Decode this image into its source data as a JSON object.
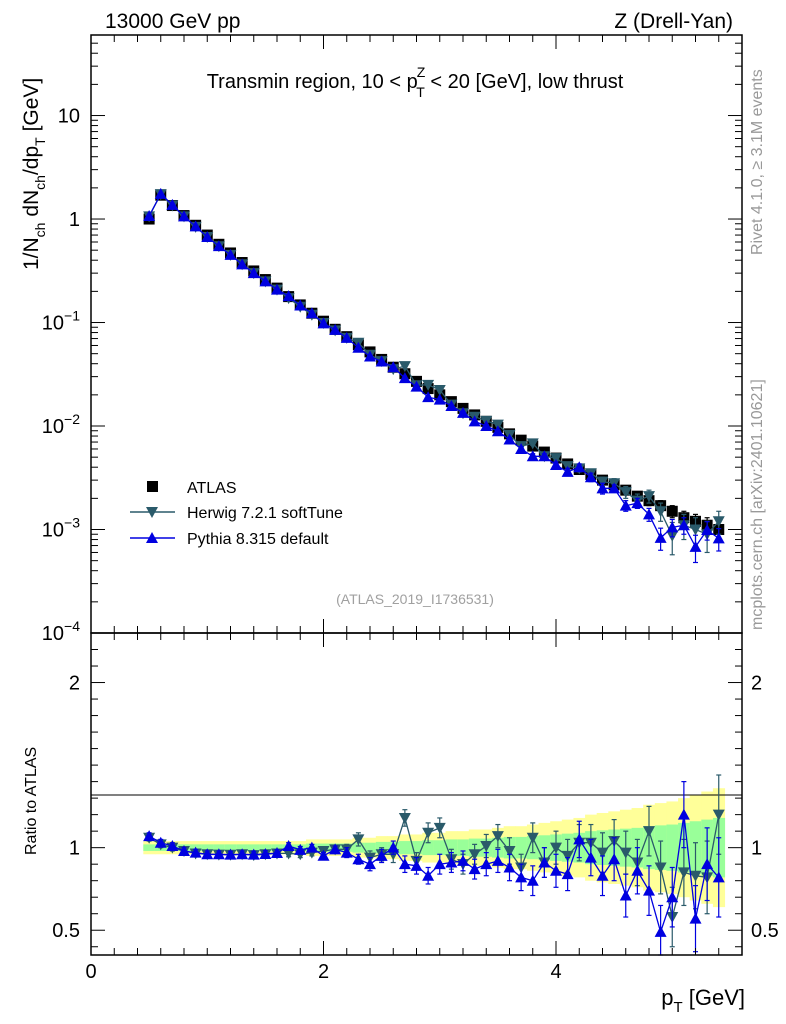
{
  "header": {
    "left_title": "13000 GeV pp",
    "right_title": "Z (Drell-Yan)"
  },
  "watermark": {
    "rivet": "Rivet 4.1.0, ≥ 3.1M events",
    "mcplots": "mcplots.cern.ch [arXiv:2401.10621]"
  },
  "colors": {
    "atlas": "#000000",
    "herwig": "#2a5a6a",
    "pythia": "#0000e0",
    "band_outer": "#ffff99",
    "band_inner": "#99ff99"
  },
  "chart_data": [
    {
      "type": "scatter",
      "panel": "main",
      "title": "Transmin region, 10 < pTZ < 20 [GeV], low thrust",
      "title_parts": {
        "pre": "Transmin region, 10 < p",
        "sup": "Z",
        "sub": "T",
        "post": " < 20 [GeV], low thrust"
      },
      "ylabel": "1/Nch dNch/dpT [GeV]",
      "ylabel_parts": {
        "a": "1/N",
        "a_sub": "ch",
        "b": " dN",
        "b_sub": "ch",
        "c": "/dp",
        "c_sub": "T",
        "d": " [GeV]"
      },
      "yscale": "log",
      "ylim": [
        0.0001,
        60
      ],
      "xlim": [
        0,
        5.6
      ],
      "y_ticks": [
        {
          "value": 10,
          "label": "10",
          "sup": ""
        },
        {
          "value": 1,
          "label": "1",
          "sup": ""
        },
        {
          "value": 0.1,
          "label": "10",
          "sup": "−1"
        },
        {
          "value": 0.01,
          "label": "10",
          "sup": "−2"
        },
        {
          "value": 0.001,
          "label": "10",
          "sup": "−3"
        },
        {
          "value": 0.0001,
          "label": "10",
          "sup": "−4"
        }
      ],
      "legend": {
        "position": "bottom-left",
        "entries": [
          "ATLAS",
          "Herwig 7.2.1 softTune",
          "Pythia 8.315 default"
        ]
      },
      "analysis_label": "(ATLAS_2019_I1736531)",
      "x": [
        0.5,
        0.6,
        0.7,
        0.8,
        0.9,
        1.0,
        1.1,
        1.2,
        1.3,
        1.4,
        1.5,
        1.6,
        1.7,
        1.8,
        1.9,
        2.0,
        2.1,
        2.2,
        2.3,
        2.4,
        2.5,
        2.6,
        2.7,
        2.8,
        2.9,
        3.0,
        3.1,
        3.2,
        3.3,
        3.4,
        3.5,
        3.6,
        3.7,
        3.8,
        3.9,
        4.0,
        4.1,
        4.2,
        4.3,
        4.4,
        4.5,
        4.6,
        4.7,
        4.8,
        4.9,
        5.0,
        5.1,
        5.2,
        5.3,
        5.4
      ],
      "series": [
        {
          "name": "ATLAS",
          "values": [
            1.0,
            1.7,
            1.35,
            1.08,
            0.87,
            0.7,
            0.57,
            0.47,
            0.38,
            0.315,
            0.26,
            0.215,
            0.178,
            0.148,
            0.123,
            0.103,
            0.086,
            0.073,
            0.061,
            0.052,
            0.044,
            0.037,
            0.032,
            0.027,
            0.023,
            0.02,
            0.0172,
            0.0148,
            0.0128,
            0.0111,
            0.0097,
            0.0084,
            0.0073,
            0.0064,
            0.0056,
            0.0049,
            0.0043,
            0.0038,
            0.0034,
            0.003,
            0.0027,
            0.0024,
            0.0021,
            0.0019,
            0.0017,
            0.0015,
            0.0013,
            0.0012,
            0.0011,
            0.001
          ],
          "errors": [
            0.05,
            0.08,
            0.06,
            0.04,
            0.03,
            0.025,
            0.02,
            0.015,
            0.012,
            0.01,
            0.008,
            0.006,
            0.005,
            0.004,
            0.003,
            0.003,
            0.002,
            0.002,
            0.0015,
            0.0013,
            0.0011,
            0.001,
            0.0009,
            0.0008,
            0.0007,
            0.0006,
            0.0005,
            0.0005,
            0.0004,
            0.0004,
            0.0003,
            0.0003,
            0.0003,
            0.0003,
            0.0002,
            0.0002,
            0.0002,
            0.0002,
            0.0002,
            0.0002,
            0.0002,
            0.0002,
            0.0002,
            0.0002,
            0.0002,
            0.0002,
            0.0002,
            0.0002,
            0.0002,
            0.0002
          ]
        },
        {
          "name": "Herwig 7.2.1 softTune",
          "values": [
            1.06,
            1.74,
            1.35,
            1.06,
            0.84,
            0.67,
            0.546,
            0.45,
            0.366,
            0.3,
            0.25,
            0.208,
            0.172,
            0.142,
            0.119,
            0.099,
            0.084,
            0.071,
            0.0637,
            0.0488,
            0.0424,
            0.0355,
            0.0379,
            0.0248,
            0.025,
            0.0223,
            0.0161,
            0.0133,
            0.0123,
            0.0112,
            0.0103,
            0.0082,
            0.0064,
            0.0068,
            0.0051,
            0.0049,
            0.0041,
            0.0039,
            0.0035,
            0.0029,
            0.0028,
            0.0023,
            0.0019,
            0.0021,
            0.0015,
            0.00087,
            0.0011,
            0.001,
            0.0009,
            0.0012
          ],
          "errors": [
            0.02,
            0.03,
            0.02,
            0.015,
            0.01,
            0.008,
            0.006,
            0.005,
            0.004,
            0.003,
            0.003,
            0.002,
            0.002,
            0.0016,
            0.0013,
            0.0011,
            0.0009,
            0.0008,
            0.0007,
            0.0006,
            0.0005,
            0.0005,
            0.0005,
            0.0004,
            0.0004,
            0.0004,
            0.0003,
            0.0003,
            0.0003,
            0.0003,
            0.0003,
            0.0003,
            0.0003,
            0.0003,
            0.0003,
            0.0003,
            0.0003,
            0.0003,
            0.0003,
            0.0003,
            0.0003,
            0.0003,
            0.0003,
            0.0003,
            0.0003,
            0.0003,
            0.0003,
            0.0003,
            0.0003,
            0.0003
          ]
        },
        {
          "name": "Pythia 8.315 default",
          "values": [
            1.07,
            1.75,
            1.37,
            1.06,
            0.85,
            0.67,
            0.547,
            0.45,
            0.365,
            0.3,
            0.25,
            0.208,
            0.18,
            0.146,
            0.123,
            0.098,
            0.085,
            0.071,
            0.057,
            0.047,
            0.042,
            0.037,
            0.029,
            0.024,
            0.019,
            0.018,
            0.0156,
            0.0134,
            0.0111,
            0.01,
            0.0089,
            0.0074,
            0.006,
            0.0051,
            0.0051,
            0.0042,
            0.0036,
            0.004,
            0.0032,
            0.0025,
            0.0025,
            0.0017,
            0.0018,
            0.0014,
            0.00083,
            0.00105,
            0.0011,
            0.00068,
            0.00099,
            0.00082
          ],
          "errors": [
            0.02,
            0.03,
            0.02,
            0.015,
            0.01,
            0.008,
            0.006,
            0.005,
            0.004,
            0.003,
            0.003,
            0.002,
            0.002,
            0.0016,
            0.0013,
            0.0011,
            0.0009,
            0.0008,
            0.0007,
            0.0006,
            0.0005,
            0.0005,
            0.0004,
            0.0004,
            0.0004,
            0.0003,
            0.0003,
            0.0003,
            0.0003,
            0.0003,
            0.0003,
            0.0003,
            0.0003,
            0.0003,
            0.0003,
            0.0003,
            0.0003,
            0.0003,
            0.0003,
            0.0003,
            0.0002,
            0.0002,
            0.0002,
            0.0002,
            0.0002,
            0.0002,
            0.0002,
            0.0002,
            0.0002,
            0.0002
          ]
        }
      ]
    },
    {
      "type": "scatter",
      "panel": "ratio",
      "ylabel": "Ratio to ATLAS",
      "xlabel": "pT [GeV]",
      "xlabel_parts": {
        "a": "p",
        "a_sub": "T",
        "b": " [GeV]"
      },
      "ylim": [
        0.35,
        2.3
      ],
      "xlim": [
        0,
        5.6
      ],
      "x_ticks": [
        0,
        2,
        4
      ],
      "y_ticks": [
        0.5,
        1,
        2
      ],
      "x": [
        0.5,
        0.6,
        0.7,
        0.8,
        0.9,
        1.0,
        1.1,
        1.2,
        1.3,
        1.4,
        1.5,
        1.6,
        1.7,
        1.8,
        1.9,
        2.0,
        2.1,
        2.2,
        2.3,
        2.4,
        2.5,
        2.6,
        2.7,
        2.8,
        2.9,
        3.0,
        3.1,
        3.2,
        3.3,
        3.4,
        3.5,
        3.6,
        3.7,
        3.8,
        3.9,
        4.0,
        4.1,
        4.2,
        4.3,
        4.4,
        4.5,
        4.6,
        4.7,
        4.8,
        4.9,
        5.0,
        5.1,
        5.2,
        5.3,
        5.4
      ],
      "band_outer": [
        0.04,
        0.04,
        0.04,
        0.04,
        0.04,
        0.04,
        0.04,
        0.04,
        0.04,
        0.04,
        0.04,
        0.04,
        0.04,
        0.04,
        0.05,
        0.05,
        0.05,
        0.05,
        0.06,
        0.06,
        0.07,
        0.07,
        0.08,
        0.08,
        0.09,
        0.09,
        0.1,
        0.1,
        0.11,
        0.11,
        0.12,
        0.13,
        0.13,
        0.14,
        0.15,
        0.16,
        0.17,
        0.18,
        0.2,
        0.21,
        0.22,
        0.23,
        0.24,
        0.26,
        0.27,
        0.28,
        0.3,
        0.32,
        0.34,
        0.36
      ],
      "band_inner": [
        0.02,
        0.02,
        0.02,
        0.02,
        0.02,
        0.02,
        0.02,
        0.02,
        0.02,
        0.02,
        0.02,
        0.02,
        0.02,
        0.02,
        0.025,
        0.025,
        0.025,
        0.025,
        0.03,
        0.03,
        0.035,
        0.035,
        0.04,
        0.04,
        0.045,
        0.045,
        0.05,
        0.05,
        0.055,
        0.055,
        0.06,
        0.065,
        0.065,
        0.07,
        0.075,
        0.08,
        0.085,
        0.09,
        0.1,
        0.105,
        0.11,
        0.115,
        0.12,
        0.13,
        0.135,
        0.14,
        0.15,
        0.16,
        0.17,
        0.18
      ],
      "series": [
        {
          "name": "Herwig 7.2.1 softTune",
          "values": [
            1.06,
            1.02,
            1.0,
            0.98,
            0.965,
            0.96,
            0.958,
            0.957,
            0.96,
            0.955,
            0.96,
            0.965,
            0.965,
            0.96,
            0.97,
            0.98,
            0.99,
            0.99,
            1.05,
            0.94,
            0.96,
            0.96,
            1.18,
            0.92,
            1.09,
            1.12,
            0.93,
            0.9,
            0.96,
            1.01,
            1.07,
            0.98,
            0.88,
            1.06,
            0.91,
            1.0,
            0.95,
            1.03,
            1.03,
            0.97,
            1.04,
            0.97,
            0.91,
            1.1,
            0.88,
            0.58,
            0.85,
            0.83,
            0.82,
            1.2
          ],
          "errors": [
            0.02,
            0.02,
            0.02,
            0.02,
            0.02,
            0.02,
            0.02,
            0.02,
            0.02,
            0.02,
            0.02,
            0.02,
            0.02,
            0.02,
            0.02,
            0.02,
            0.02,
            0.03,
            0.04,
            0.04,
            0.04,
            0.05,
            0.05,
            0.05,
            0.06,
            0.06,
            0.06,
            0.06,
            0.06,
            0.07,
            0.07,
            0.08,
            0.08,
            0.09,
            0.09,
            0.1,
            0.1,
            0.11,
            0.11,
            0.12,
            0.13,
            0.13,
            0.14,
            0.15,
            0.16,
            0.18,
            0.2,
            0.2,
            0.22,
            0.24
          ]
        },
        {
          "name": "Pythia 8.315 default",
          "values": [
            1.07,
            1.03,
            1.01,
            0.98,
            0.97,
            0.96,
            0.96,
            0.958,
            0.96,
            0.958,
            0.962,
            0.968,
            1.01,
            0.987,
            1.0,
            0.951,
            0.99,
            0.97,
            0.93,
            0.9,
            0.95,
            1.0,
            0.9,
            0.89,
            0.83,
            0.9,
            0.91,
            0.92,
            0.87,
            0.9,
            0.92,
            0.88,
            0.82,
            0.8,
            0.91,
            0.86,
            0.84,
            1.05,
            0.94,
            0.83,
            0.93,
            0.71,
            0.86,
            0.74,
            0.49,
            0.7,
            1.2,
            0.57,
            0.9,
            0.82
          ],
          "errors": [
            0.02,
            0.02,
            0.02,
            0.02,
            0.02,
            0.02,
            0.02,
            0.02,
            0.02,
            0.02,
            0.02,
            0.02,
            0.02,
            0.02,
            0.02,
            0.02,
            0.02,
            0.03,
            0.03,
            0.04,
            0.04,
            0.04,
            0.05,
            0.05,
            0.05,
            0.06,
            0.06,
            0.06,
            0.06,
            0.07,
            0.07,
            0.08,
            0.08,
            0.09,
            0.09,
            0.1,
            0.1,
            0.11,
            0.11,
            0.12,
            0.13,
            0.13,
            0.14,
            0.15,
            0.16,
            0.18,
            0.2,
            0.2,
            0.22,
            0.24
          ]
        }
      ]
    }
  ]
}
